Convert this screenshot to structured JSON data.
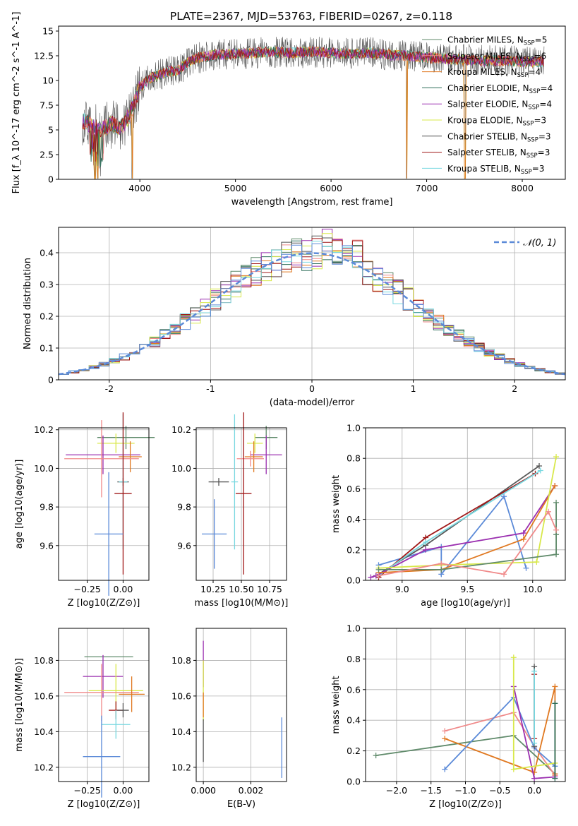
{
  "figure_title": "PLATE=2367, MJD=53763, FIBERID=0267, z=0.118",
  "colors": {
    "Chabrier MILES": "#5f8a6a",
    "Salpeter MILES": "#f08a8a",
    "Kroupa MILES": "#e07820",
    "Chabrier ELODIE": "#2e6e5a",
    "Salpeter ELODIE": "#9b30b0",
    "Kroupa ELODIE": "#d8e84a",
    "Chabrier STELIB": "#555555",
    "Salpeter STELIB": "#a01818",
    "Kroupa STELIB": "#78d8e0",
    "gaussian": "#5b8ad8",
    "blue": "#5b8ad8",
    "pink": "#e880a8",
    "gray": "#707070"
  },
  "chart_data": [
    {
      "type": "line",
      "xlabel": "wavelength [Angstrom, rest frame]",
      "ylabel": "Flux [f_λ 10^-17 erg cm^-2 s^-1 A^-1]",
      "xlim": [
        3150,
        8450
      ],
      "ylim": [
        0,
        15.5
      ],
      "xticks": [
        4000,
        5000,
        6000,
        7000,
        8000
      ],
      "yticks": [
        0.0,
        2.5,
        5.0,
        7.5,
        10.0,
        12.5,
        15.0
      ],
      "legend": [
        "Chabrier MILES, N_SSP=5",
        "Salpeter MILES, N_SSP=6",
        "Kroupa MILES, N_SSP=4",
        "Chabrier ELODIE, N_SSP=4",
        "Salpeter ELODIE, N_SSP=4",
        "Kroupa ELODIE, N_SSP=3",
        "Chabrier STELIB, N_SSP=3",
        "Salpeter STELIB, N_SSP=3",
        "Kroupa STELIB, N_SSP=3"
      ],
      "legend_placement": "right",
      "x": [
        3400,
        3500,
        3600,
        3700,
        3800,
        3900,
        4000,
        4100,
        4200,
        4300,
        4400,
        4500,
        4600,
        4700,
        4800,
        5000,
        5200,
        5400,
        5600,
        5800,
        6000,
        6200,
        6400,
        6600,
        6800,
        7000,
        7200,
        7400,
        7600,
        7800,
        8000,
        8200
      ],
      "y": [
        6.0,
        5.4,
        5.0,
        5.6,
        5.2,
        6.6,
        9.3,
        10.2,
        10.6,
        10.9,
        11.0,
        11.8,
        12.3,
        12.4,
        12.6,
        12.7,
        12.8,
        12.9,
        12.8,
        12.9,
        12.8,
        12.7,
        12.8,
        12.6,
        12.5,
        12.3,
        12.2,
        12.1,
        12.0,
        12.0,
        11.9,
        11.9
      ],
      "dips": [
        3530,
        3560,
        3920,
        6790,
        7400
      ]
    },
    {
      "type": "line",
      "xlabel": "(data-model)/error",
      "ylabel": "Normed distribution",
      "xlim": [
        -2.5,
        2.5
      ],
      "ylim": [
        0,
        0.48
      ],
      "xticks": [
        -2,
        -1,
        0,
        1,
        2
      ],
      "yticks": [
        0.0,
        0.1,
        0.2,
        0.3,
        0.4
      ],
      "legend": [
        "𝒩(0, 1)"
      ],
      "legend_placement": "top-right",
      "grid": true,
      "bins": 50
    },
    {
      "type": "scatter",
      "xlabel": "Z [log10(Z/Z⊙)]",
      "ylabel": "age [log10(age/yr)]",
      "xlim": [
        -0.45,
        0.18
      ],
      "ylim": [
        9.42,
        10.21
      ],
      "xticks": [
        "−0.25",
        "0.00"
      ],
      "yticks": [
        "9.6",
        "9.8",
        "10.0",
        "10.2"
      ],
      "grid": true,
      "points": [
        {
          "c": "#5f8a6a",
          "x": 0.02,
          "y": 10.16,
          "xe": 0.2,
          "ye": 0.06
        },
        {
          "c": "#d8e84a",
          "x": -0.05,
          "y": 10.13,
          "xe": 0.13,
          "ye": 0.05
        },
        {
          "c": "#9b30b0",
          "x": -0.14,
          "y": 10.07,
          "xe": 0.26,
          "ye": 0.1
        },
        {
          "c": "#e07820",
          "x": 0.05,
          "y": 10.06,
          "xe": 0.08,
          "ye": 0.08
        },
        {
          "c": "#f08a8a",
          "x": -0.15,
          "y": 10.05,
          "xe": 0.26,
          "ye": 0.2
        },
        {
          "c": "#555555",
          "x": 0.0,
          "y": 9.93,
          "xe": 0.04,
          "ye": 0.02
        },
        {
          "c": "#78d8e0",
          "x": 0.0,
          "y": 9.93,
          "xe": 0.03,
          "ye": 0.35
        },
        {
          "c": "#a01818",
          "x": 0.0,
          "y": 9.87,
          "xe": 0.06,
          "ye": 0.42
        },
        {
          "c": "#5b8ad8",
          "x": -0.1,
          "y": 9.66,
          "xe": 0.1,
          "ye": 0.32
        }
      ]
    },
    {
      "type": "scatter",
      "xlabel": "mass [log10(M/M⊙)]",
      "ylabel": "",
      "xlim": [
        10.1,
        10.9
      ],
      "ylim": [
        9.42,
        10.21
      ],
      "xticks": [
        "10.25",
        "10.50",
        "10.75"
      ],
      "yticks": [
        "9.6",
        "9.8",
        "10.0",
        "10.2"
      ],
      "grid": true,
      "points": [
        {
          "c": "#5f8a6a",
          "x": 10.72,
          "y": 10.16,
          "xe": 0.1,
          "ye": 0.06
        },
        {
          "c": "#d8e84a",
          "x": 10.62,
          "y": 10.13,
          "xe": 0.07,
          "ye": 0.05
        },
        {
          "c": "#9b30b0",
          "x": 10.72,
          "y": 10.07,
          "xe": 0.14,
          "ye": 0.1
        },
        {
          "c": "#e07820",
          "x": 10.61,
          "y": 10.06,
          "xe": 0.08,
          "ye": 0.08
        },
        {
          "c": "#f08a8a",
          "x": 10.58,
          "y": 10.05,
          "xe": 0.12,
          "ye": 0.04
        },
        {
          "c": "#555555",
          "x": 10.3,
          "y": 9.93,
          "xe": 0.09,
          "ye": 0.02
        },
        {
          "c": "#78d8e0",
          "x": 10.44,
          "y": 9.93,
          "xe": 0.03,
          "ye": 0.35
        },
        {
          "c": "#a01818",
          "x": 10.52,
          "y": 9.87,
          "xe": 0.07,
          "ye": 0.42
        },
        {
          "c": "#5b8ad8",
          "x": 10.26,
          "y": 9.66,
          "xe": 0.11,
          "ye": 0.18
        }
      ]
    },
    {
      "type": "line",
      "xlabel": "age [log10(age/yr)]",
      "ylabel": "mass weight",
      "xlim": [
        8.72,
        10.25
      ],
      "ylim": [
        0,
        1.0
      ],
      "xticks": [
        "9.0",
        "9.5",
        "10.0"
      ],
      "yticks": [
        "0.0",
        "0.2",
        "0.4",
        "0.6",
        "0.8",
        "1.0"
      ],
      "grid": true,
      "series": [
        {
          "c": "#5b8ad8",
          "pts": [
            [
              8.82,
              0.1
            ],
            [
              9.3,
              0.22
            ],
            [
              9.3,
              0.04
            ],
            [
              9.78,
              0.55
            ],
            [
              9.95,
              0.08
            ]
          ]
        },
        {
          "c": "#555555",
          "pts": [
            [
              8.8,
              0.03
            ],
            [
              9.18,
              0.23
            ],
            [
              10.05,
              0.75
            ]
          ]
        },
        {
          "c": "#a01818",
          "pts": [
            [
              8.82,
              0.02
            ],
            [
              9.18,
              0.28
            ],
            [
              10.02,
              0.7
            ]
          ]
        },
        {
          "c": "#78d8e0",
          "pts": [
            [
              8.82,
              0.03
            ],
            [
              9.18,
              0.25
            ],
            [
              10.06,
              0.72
            ]
          ]
        },
        {
          "c": "#9b30b0",
          "pts": [
            [
              8.76,
              0.02
            ],
            [
              8.8,
              0.03
            ],
            [
              9.18,
              0.2
            ],
            [
              9.93,
              0.31
            ],
            [
              10.17,
              0.62
            ]
          ]
        },
        {
          "c": "#e07820",
          "pts": [
            [
              8.82,
              0.05
            ],
            [
              9.3,
              0.07
            ],
            [
              9.93,
              0.27
            ],
            [
              10.17,
              0.62
            ]
          ]
        },
        {
          "c": "#d8e84a",
          "pts": [
            [
              8.82,
              0.08
            ],
            [
              9.3,
              0.1
            ],
            [
              10.03,
              0.12
            ],
            [
              10.18,
              0.81
            ]
          ]
        },
        {
          "c": "#5f8a6a",
          "pts": [
            [
              8.82,
              0.07
            ],
            [
              9.3,
              0.07
            ],
            [
              10.18,
              0.17
            ],
            [
              10.18,
              0.51
            ],
            [
              10.18,
              0.3
            ]
          ]
        },
        {
          "c": "#f08a8a",
          "pts": [
            [
              8.82,
              0.03
            ],
            [
              9.3,
              0.11
            ],
            [
              9.78,
              0.04
            ],
            [
              10.12,
              0.45
            ],
            [
              10.18,
              0.33
            ]
          ]
        }
      ]
    },
    {
      "type": "scatter",
      "xlabel": "Z [log10(Z/Z⊙)]",
      "ylabel": "mass [log10(M/M⊙)]",
      "xlim": [
        -0.45,
        0.18
      ],
      "ylim": [
        10.12,
        10.98
      ],
      "xticks": [
        "−0.25",
        "0.00"
      ],
      "yticks": [
        "10.2",
        "10.4",
        "10.6",
        "10.8"
      ],
      "grid": true,
      "points": [
        {
          "c": "#5f8a6a",
          "x": -0.1,
          "y": 10.82,
          "xe": 0.17,
          "ye": 0.0
        },
        {
          "c": "#9b30b0",
          "x": -0.14,
          "y": 10.71,
          "xe": 0.14,
          "ye": 0.12
        },
        {
          "c": "#d8e84a",
          "x": -0.05,
          "y": 10.63,
          "xe": 0.19,
          "ye": 0.15
        },
        {
          "c": "#f08a8a",
          "x": -0.15,
          "y": 10.62,
          "xe": 0.26,
          "ye": 0.16
        },
        {
          "c": "#e07820",
          "x": 0.06,
          "y": 10.61,
          "xe": 0.09,
          "ye": 0.1
        },
        {
          "c": "#a01818",
          "x": -0.05,
          "y": 10.52,
          "xe": 0.05,
          "ye": 0.05
        },
        {
          "c": "#555555",
          "x": 0.0,
          "y": 10.52,
          "xe": 0.04,
          "ye": 0.04
        },
        {
          "c": "#78d8e0",
          "x": -0.05,
          "y": 10.44,
          "xe": 0.1,
          "ye": 0.08
        },
        {
          "c": "#5b8ad8",
          "x": -0.15,
          "y": 10.26,
          "xe": 0.13,
          "ye": 0.23
        }
      ]
    },
    {
      "type": "scatter",
      "xlabel": "E(B-V)",
      "ylabel": "",
      "xlim": [
        -0.0003,
        0.0035
      ],
      "ylim": [
        10.12,
        10.98
      ],
      "xticks": [
        "0.000",
        "0.002"
      ],
      "yticks": [
        "10.2",
        "10.4",
        "10.6",
        "10.8"
      ],
      "grid": true,
      "points": [
        {
          "c": "#9b30b0",
          "x": 0.0,
          "y": 10.78,
          "xe": 0.0,
          "ye": 0.13
        },
        {
          "c": "#d8e84a",
          "x": 0.0,
          "y": 10.63,
          "xe": 0.0,
          "ye": 0.17
        },
        {
          "c": "#e07820",
          "x": 0.0,
          "y": 10.55,
          "xe": 0.0,
          "ye": 0.07
        },
        {
          "c": "#555555",
          "x": 0.0,
          "y": 10.35,
          "xe": 0.0,
          "ye": 0.12
        },
        {
          "c": "#5b8ad8",
          "x": 0.0033,
          "y": 10.31,
          "xe": 0.0,
          "ye": 0.17
        }
      ]
    },
    {
      "type": "line",
      "xlabel": "Z [log10(Z/Z⊙)]",
      "ylabel": "mass weight",
      "xlim": [
        -2.45,
        0.45
      ],
      "ylim": [
        0,
        1.0
      ],
      "xticks": [
        "−2.0",
        "−1.5",
        "−1.0",
        "−0.5",
        "0.0"
      ],
      "yticks": [
        "0.0",
        "0.2",
        "0.4",
        "0.6",
        "0.8",
        "1.0"
      ],
      "grid": true,
      "series": [
        {
          "c": "#5f8a6a",
          "pts": [
            [
              -2.3,
              0.17
            ],
            [
              -0.3,
              0.3
            ],
            [
              0.3,
              0.05
            ]
          ]
        },
        {
          "c": "#f08a8a",
          "pts": [
            [
              -1.3,
              0.33
            ],
            [
              -0.3,
              0.45
            ],
            [
              0.0,
              0.23
            ],
            [
              0.3,
              0.04
            ]
          ]
        },
        {
          "c": "#e07820",
          "pts": [
            [
              -1.3,
              0.28
            ],
            [
              0.0,
              0.06
            ],
            [
              0.3,
              0.62
            ],
            [
              0.3,
              0.05
            ]
          ]
        },
        {
          "c": "#5b8ad8",
          "pts": [
            [
              -1.3,
              0.08
            ],
            [
              -0.3,
              0.55
            ],
            [
              0.0,
              0.22
            ],
            [
              0.3,
              0.1
            ]
          ]
        },
        {
          "c": "#9b30b0",
          "pts": [
            [
              -0.3,
              0.62
            ],
            [
              0.0,
              0.02
            ],
            [
              0.3,
              0.03
            ]
          ]
        },
        {
          "c": "#d8e84a",
          "pts": [
            [
              -0.3,
              0.81
            ],
            [
              -0.3,
              0.08
            ],
            [
              0.3,
              0.12
            ]
          ]
        },
        {
          "c": "#555555",
          "pts": [
            [
              0.0,
              0.75
            ],
            [
              0.0,
              0.23
            ]
          ]
        },
        {
          "c": "#a01818",
          "pts": [
            [
              0.0,
              0.7
            ],
            [
              0.0,
              0.28
            ]
          ]
        },
        {
          "c": "#78d8e0",
          "pts": [
            [
              0.0,
              0.72
            ],
            [
              0.0,
              0.25
            ]
          ]
        },
        {
          "c": "#2e6e5a",
          "pts": [
            [
              0.3,
              0.51
            ],
            [
              0.3,
              0.02
            ]
          ]
        }
      ]
    }
  ]
}
